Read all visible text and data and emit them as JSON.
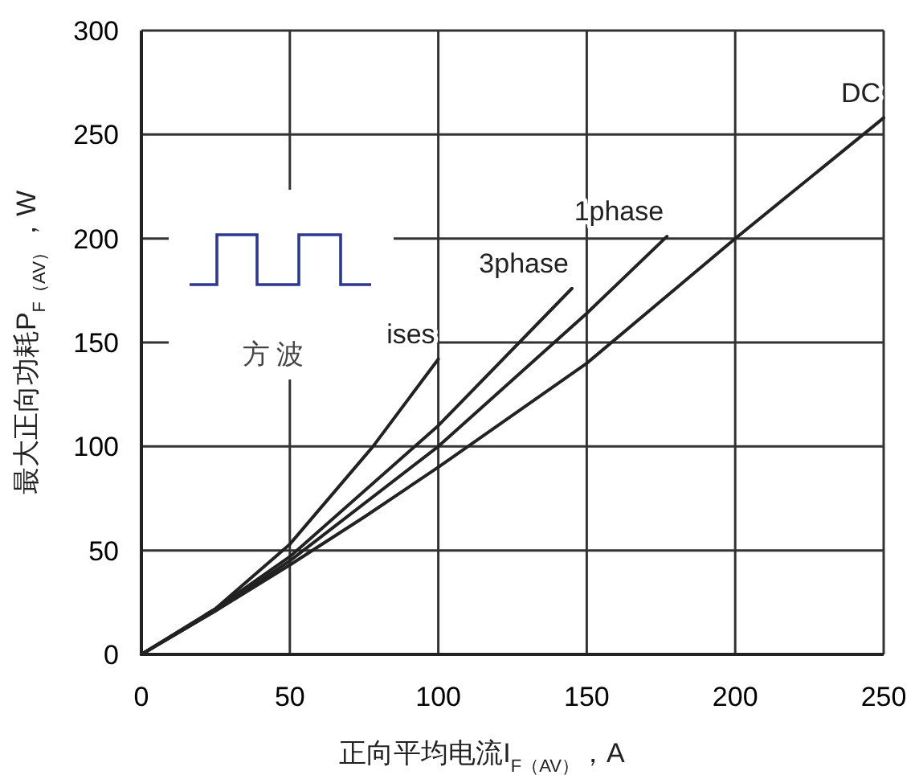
{
  "chart_data": {
    "type": "line",
    "xlabel": "正向平均电流I$_{F（AV）}$，A",
    "ylabel": "最大正向功耗P$_{F（AV）}$，W",
    "xlim": [
      0,
      250
    ],
    "xticks": [
      0,
      50,
      100,
      150,
      200,
      250
    ],
    "ylim": [
      0,
      300
    ],
    "yticks": [
      0,
      50,
      100,
      150,
      200,
      250,
      300
    ],
    "grid": true,
    "marker": "none",
    "line_style": "solid",
    "annotations": [
      "方 波"
    ],
    "series": [
      {
        "name": "ises",
        "color": "#222222",
        "x": [
          0,
          25,
          50,
          78,
          100
        ],
        "values": [
          0,
          22,
          53,
          100,
          142
        ]
      },
      {
        "name": "3phase",
        "color": "#222222",
        "x": [
          0,
          25,
          50,
          100,
          145
        ],
        "values": [
          0,
          22,
          47,
          110,
          176
        ]
      },
      {
        "name": "1phase",
        "color": "#222222",
        "x": [
          0,
          25,
          50,
          100,
          150,
          177
        ],
        "values": [
          0,
          21,
          45,
          100,
          164,
          201
        ]
      },
      {
        "name": "DC",
        "color": "#222222",
        "x": [
          0,
          25,
          50,
          75,
          100,
          150,
          200,
          250
        ],
        "values": [
          0,
          21,
          43,
          66,
          90,
          140,
          200,
          258
        ]
      }
    ]
  }
}
